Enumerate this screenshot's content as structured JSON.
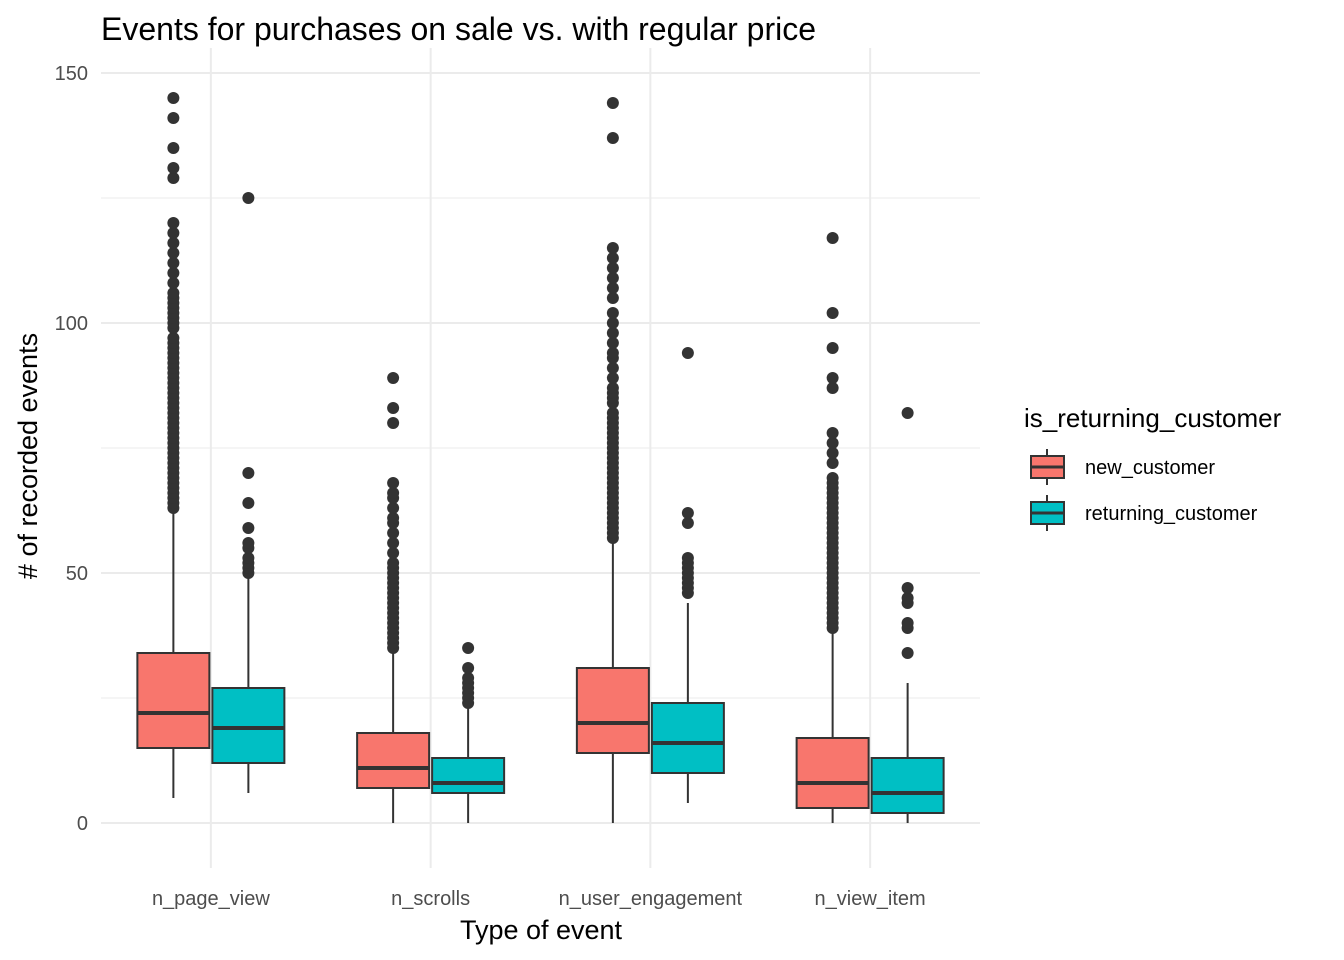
{
  "chart_data": {
    "type": "boxplot",
    "title": "Events for purchases on sale vs. with regular price",
    "xlabel": "Type of event",
    "ylabel": "# of recorded events",
    "ylim": [
      -9,
      155
    ],
    "yticks": [
      0,
      50,
      100,
      150
    ],
    "grid": true,
    "legend_position": "right",
    "categories": [
      "n_page_view",
      "n_scrolls",
      "n_user_engagement",
      "n_view_item"
    ],
    "legend": {
      "title": "is_returning_customer",
      "entries": [
        {
          "label": "new_customer",
          "color": "#f8766d"
        },
        {
          "label": "returning_customer",
          "color": "#00bfc4"
        }
      ]
    },
    "series": [
      {
        "name": "new_customer",
        "color": "#f8766d",
        "boxes": [
          {
            "min": 5,
            "q1": 15,
            "median": 22,
            "q3": 34,
            "max": 63,
            "outliers": [
              63,
              64,
              65,
              66,
              67,
              68,
              69,
              70,
              71,
              72,
              73,
              74,
              75,
              76,
              77,
              78,
              79,
              80,
              81,
              82,
              83,
              84,
              85,
              86,
              87,
              88,
              89,
              90,
              91,
              92,
              93,
              94,
              95,
              96,
              97,
              99,
              100,
              101,
              102,
              103,
              104,
              105,
              106,
              108,
              110,
              112,
              114,
              116,
              118,
              120,
              129,
              131,
              135,
              141,
              145
            ]
          },
          {
            "min": 0,
            "q1": 7,
            "median": 11,
            "q3": 18,
            "max": 35,
            "outliers": [
              35,
              36,
              37,
              38,
              39,
              40,
              41,
              42,
              43,
              44,
              45,
              46,
              47,
              48,
              49,
              50,
              51,
              52,
              54,
              56,
              58,
              60,
              61,
              63,
              65,
              66,
              68,
              80,
              83,
              89
            ]
          },
          {
            "min": 0,
            "q1": 14,
            "median": 20,
            "q3": 31,
            "max": 57,
            "outliers": [
              57,
              58,
              59,
              60,
              61,
              62,
              63,
              64,
              65,
              66,
              67,
              68,
              69,
              70,
              71,
              72,
              73,
              74,
              75,
              76,
              77,
              78,
              79,
              80,
              81,
              82,
              84,
              85,
              86,
              87,
              89,
              91,
              93,
              94,
              96,
              98,
              100,
              102,
              105,
              107,
              109,
              111,
              113,
              115,
              137,
              144
            ]
          },
          {
            "min": 0,
            "q1": 3,
            "median": 8,
            "q3": 17,
            "max": 39,
            "outliers": [
              39,
              40,
              41,
              42,
              43,
              44,
              45,
              46,
              47,
              48,
              49,
              50,
              51,
              52,
              53,
              54,
              55,
              56,
              57,
              58,
              59,
              60,
              61,
              62,
              63,
              64,
              65,
              66,
              67,
              68,
              69,
              72,
              74,
              76,
              78,
              87,
              89,
              95,
              102,
              117
            ]
          }
        ]
      },
      {
        "name": "returning_customer",
        "color": "#00bfc4",
        "boxes": [
          {
            "min": 6,
            "q1": 12,
            "median": 19,
            "q3": 27,
            "max": 50,
            "outliers": [
              50,
              51,
              52,
              53,
              55,
              56,
              59,
              64,
              70,
              125
            ]
          },
          {
            "min": 0,
            "q1": 6,
            "median": 8,
            "q3": 13,
            "max": 23,
            "outliers": [
              24,
              25,
              26,
              27,
              28,
              29,
              31,
              35
            ]
          },
          {
            "min": 4,
            "q1": 10,
            "median": 16,
            "q3": 24,
            "max": 44,
            "outliers": [
              46,
              47,
              48,
              49,
              50,
              51,
              52,
              53,
              60,
              62,
              94
            ]
          },
          {
            "min": 0,
            "q1": 2,
            "median": 6,
            "q3": 13,
            "max": 28,
            "outliers": [
              34,
              39,
              40,
              44,
              45,
              47,
              82
            ]
          }
        ]
      }
    ]
  }
}
